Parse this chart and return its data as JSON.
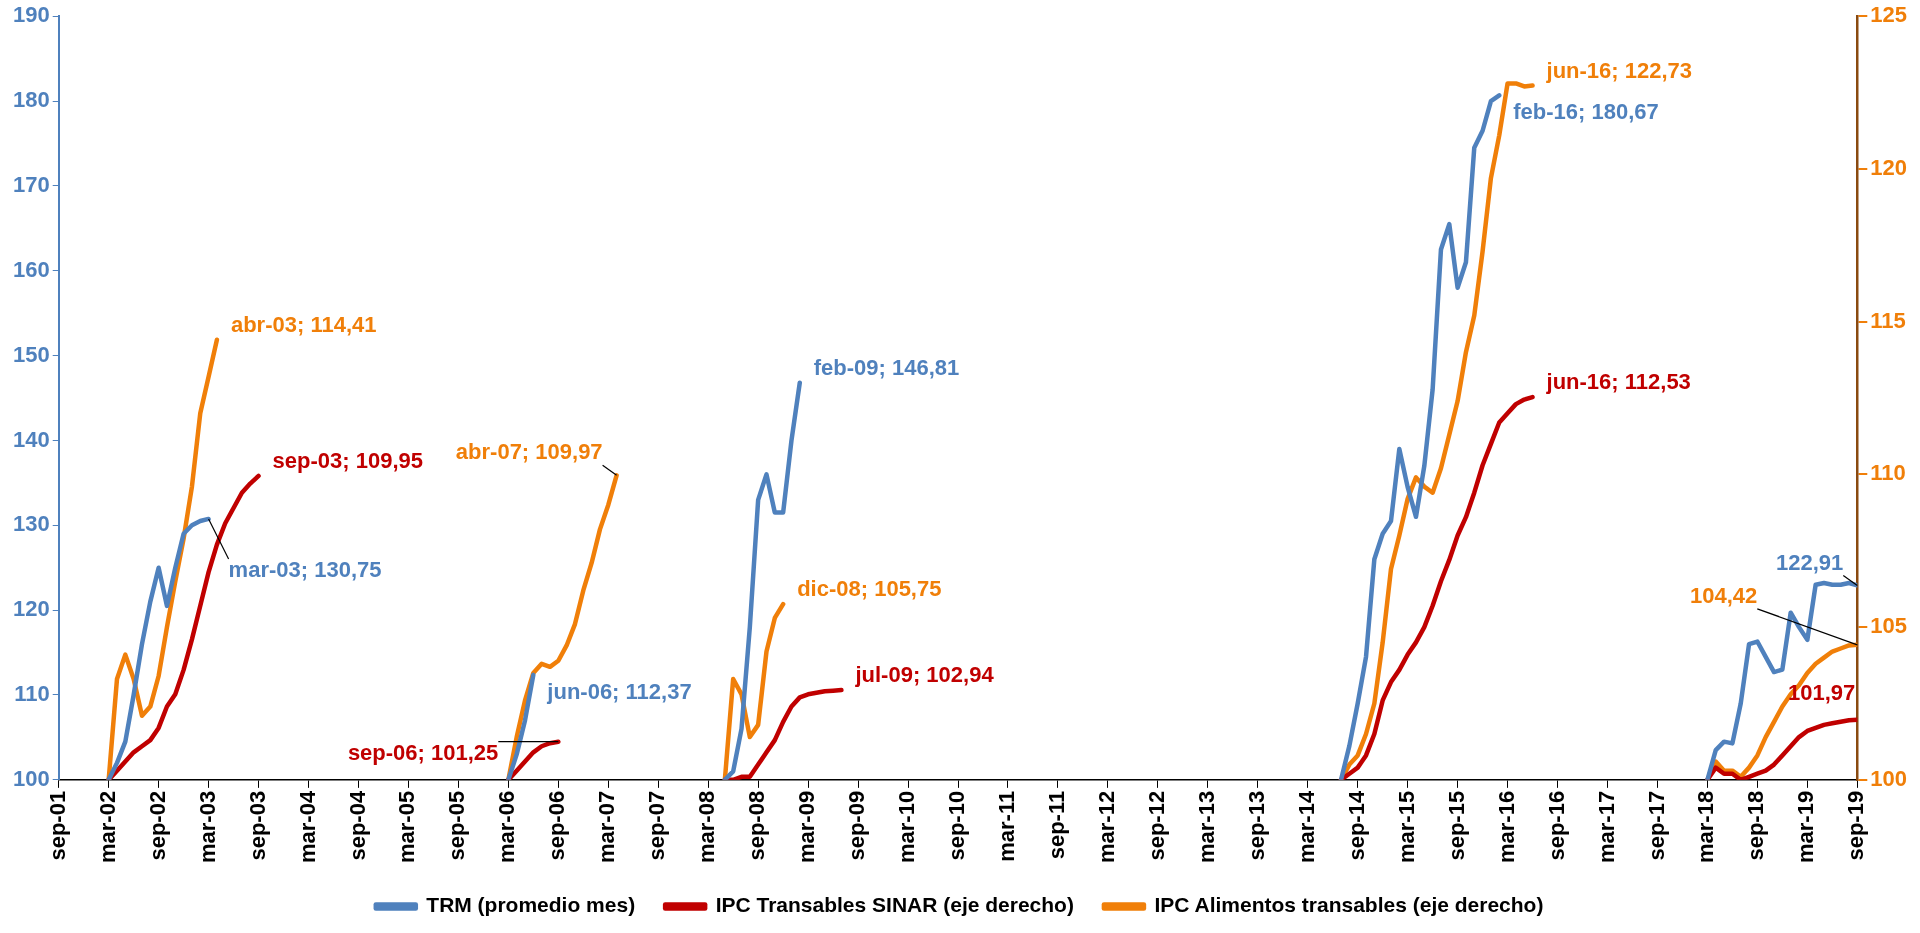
{
  "chart_data": {
    "type": "line",
    "xlim": [
      "2001-09",
      "2019-09"
    ],
    "xticks": [
      {
        "value": "2001-09",
        "label": "sep-01"
      },
      {
        "value": "2002-03",
        "label": "mar-02"
      },
      {
        "value": "2002-09",
        "label": "sep-02"
      },
      {
        "value": "2003-03",
        "label": "mar-03"
      },
      {
        "value": "2003-09",
        "label": "sep-03"
      },
      {
        "value": "2004-03",
        "label": "mar-04"
      },
      {
        "value": "2004-09",
        "label": "sep-04"
      },
      {
        "value": "2005-03",
        "label": "mar-05"
      },
      {
        "value": "2005-09",
        "label": "sep-05"
      },
      {
        "value": "2006-03",
        "label": "mar-06"
      },
      {
        "value": "2006-09",
        "label": "sep-06"
      },
      {
        "value": "2007-03",
        "label": "mar-07"
      },
      {
        "value": "2007-09",
        "label": "sep-07"
      },
      {
        "value": "2008-03",
        "label": "mar-08"
      },
      {
        "value": "2008-09",
        "label": "sep-08"
      },
      {
        "value": "2009-03",
        "label": "mar-09"
      },
      {
        "value": "2009-09",
        "label": "sep-09"
      },
      {
        "value": "2010-03",
        "label": "mar-10"
      },
      {
        "value": "2010-09",
        "label": "sep-10"
      },
      {
        "value": "2011-03",
        "label": "mar-11"
      },
      {
        "value": "2011-09",
        "label": "sep-11"
      },
      {
        "value": "2012-03",
        "label": "mar-12"
      },
      {
        "value": "2012-09",
        "label": "sep-12"
      },
      {
        "value": "2013-03",
        "label": "mar-13"
      },
      {
        "value": "2013-09",
        "label": "sep-13"
      },
      {
        "value": "2014-03",
        "label": "mar-14"
      },
      {
        "value": "2014-09",
        "label": "sep-14"
      },
      {
        "value": "2015-03",
        "label": "mar-15"
      },
      {
        "value": "2015-09",
        "label": "sep-15"
      },
      {
        "value": "2016-03",
        "label": "mar-16"
      },
      {
        "value": "2016-09",
        "label": "sep-16"
      },
      {
        "value": "2017-03",
        "label": "mar-17"
      },
      {
        "value": "2017-09",
        "label": "sep-17"
      },
      {
        "value": "2018-03",
        "label": "mar-18"
      },
      {
        "value": "2018-09",
        "label": "sep-18"
      },
      {
        "value": "2019-03",
        "label": "mar-19"
      },
      {
        "value": "2019-09",
        "label": "sep-19"
      }
    ],
    "ylim": [
      100,
      190
    ],
    "yticks": [
      100,
      110,
      120,
      130,
      140,
      150,
      160,
      170,
      180,
      190
    ],
    "y2lim": [
      100,
      125
    ],
    "y2ticks": [
      100,
      105,
      110,
      115,
      120,
      125
    ],
    "grid": false,
    "legend": "bottom",
    "marker": "none",
    "line_style": "solid",
    "series": [
      {
        "name": "TRM (promedio mes)",
        "color": "#4f81bd",
        "axis": "y",
        "x": [
          "2002-03",
          "2002-04",
          "2002-05",
          "2002-06",
          "2002-07",
          "2002-08",
          "2002-09",
          "2002-10",
          "2002-11",
          "2002-12",
          "2003-01",
          "2003-02",
          "2003-03",
          "2003-04",
          "2006-03",
          "2006-04",
          "2006-05",
          "2006-06",
          "2006-07",
          "2008-05",
          "2008-06",
          "2008-07",
          "2008-08",
          "2008-09",
          "2008-10",
          "2008-11",
          "2008-12",
          "2009-01",
          "2009-02",
          "2009-03",
          "2014-07",
          "2014-08",
          "2014-09",
          "2014-10",
          "2014-11",
          "2014-12",
          "2015-01",
          "2015-02",
          "2015-03",
          "2015-04",
          "2015-05",
          "2015-06",
          "2015-07",
          "2015-08",
          "2015-09",
          "2015-10",
          "2015-11",
          "2015-12",
          "2016-01",
          "2016-02",
          "2016-03",
          "2018-03",
          "2018-04",
          "2018-05",
          "2018-06",
          "2018-07",
          "2018-08",
          "2018-09",
          "2018-10",
          "2018-11",
          "2018-12",
          "2019-01",
          "2019-02",
          "2019-03",
          "2019-04",
          "2019-05",
          "2019-06",
          "2019-07",
          "2019-08",
          "2019-09"
        ],
        "values": [
          100,
          102,
          104.5,
          110,
          116,
          121,
          125,
          120.5,
          125,
          129,
          130,
          130.5,
          130.75,
          null,
          100,
          103,
          107,
          112.37,
          null,
          100,
          101,
          106,
          118,
          133,
          136,
          131.5,
          131.5,
          140,
          146.81,
          null,
          100,
          104,
          109,
          114.5,
          126,
          129,
          130.5,
          139,
          134.5,
          131,
          137,
          146,
          162.5,
          165.5,
          158,
          161,
          174.5,
          176.5,
          180,
          180.67,
          null,
          100,
          103.5,
          104.5,
          104.3,
          109,
          116,
          116.3,
          114.5,
          112.7,
          113,
          119.7,
          118,
          116.5,
          123,
          123.2,
          123,
          123,
          123.2,
          122.91
        ],
        "value_labels": [
          null,
          null,
          null,
          null,
          null,
          null,
          null,
          null,
          null,
          null,
          null,
          null,
          "mar-03; 130,75",
          null,
          null,
          null,
          null,
          "jun-06; 112,37",
          null,
          null,
          null,
          null,
          null,
          null,
          null,
          null,
          null,
          null,
          "feb-09; 146,81",
          null,
          null,
          null,
          null,
          null,
          null,
          null,
          null,
          null,
          null,
          null,
          null,
          null,
          null,
          null,
          null,
          null,
          null,
          null,
          null,
          "feb-16; 180,67",
          null,
          null,
          null,
          null,
          null,
          null,
          null,
          null,
          null,
          null,
          null,
          null,
          null,
          null,
          null,
          null,
          null,
          null,
          null,
          "122,91"
        ]
      },
      {
        "name": "IPC Transables SINAR (eje derecho)",
        "color": "#c00000",
        "axis": "y2",
        "x": [
          "2002-03",
          "2002-04",
          "2002-05",
          "2002-06",
          "2002-07",
          "2002-08",
          "2002-09",
          "2002-10",
          "2002-11",
          "2002-12",
          "2003-01",
          "2003-02",
          "2003-03",
          "2003-04",
          "2003-05",
          "2003-06",
          "2003-07",
          "2003-08",
          "2003-09",
          "2003-10",
          "2006-03",
          "2006-04",
          "2006-05",
          "2006-06",
          "2006-07",
          "2006-08",
          "2006-09",
          "2006-10",
          "2008-05",
          "2008-06",
          "2008-07",
          "2008-08",
          "2008-09",
          "2008-10",
          "2008-11",
          "2008-12",
          "2009-01",
          "2009-02",
          "2009-03",
          "2009-04",
          "2009-05",
          "2009-06",
          "2009-07",
          "2009-08",
          "2014-07",
          "2014-08",
          "2014-09",
          "2014-10",
          "2014-11",
          "2014-12",
          "2015-01",
          "2015-02",
          "2015-03",
          "2015-04",
          "2015-05",
          "2015-06",
          "2015-07",
          "2015-08",
          "2015-09",
          "2015-10",
          "2015-11",
          "2015-12",
          "2016-01",
          "2016-02",
          "2016-03",
          "2016-04",
          "2016-05",
          "2016-06",
          "2016-07",
          "2018-03",
          "2018-04",
          "2018-05",
          "2018-06",
          "2018-07",
          "2018-08",
          "2018-09",
          "2018-10",
          "2018-11",
          "2018-12",
          "2019-01",
          "2019-02",
          "2019-03",
          "2019-04",
          "2019-05",
          "2019-06",
          "2019-07",
          "2019-08",
          "2019-09"
        ],
        "values": [
          100,
          100.3,
          100.6,
          100.9,
          101.1,
          101.3,
          101.7,
          102.4,
          102.8,
          103.6,
          104.6,
          105.7,
          106.8,
          107.7,
          108.4,
          108.9,
          109.4,
          109.7,
          109.95,
          null,
          100,
          100.3,
          100.6,
          100.9,
          101.1,
          101.2,
          101.25,
          null,
          100,
          100,
          100.1,
          100.1,
          100.5,
          100.9,
          101.3,
          101.9,
          102.4,
          102.7,
          102.8,
          102.85,
          102.9,
          102.92,
          102.94,
          null,
          100,
          100.2,
          100.4,
          100.8,
          101.5,
          102.6,
          103.2,
          103.6,
          104.1,
          104.5,
          105,
          105.7,
          106.5,
          107.2,
          108,
          108.6,
          109.4,
          110.3,
          111,
          111.7,
          112,
          112.3,
          112.45,
          112.53,
          null,
          100,
          100.4,
          100.2,
          100.2,
          100,
          100.1,
          100.2,
          100.3,
          100.5,
          100.8,
          101.1,
          101.4,
          101.6,
          101.7,
          101.8,
          101.85,
          101.9,
          101.95,
          101.97
        ],
        "value_labels": [
          null,
          null,
          null,
          null,
          null,
          null,
          null,
          null,
          null,
          null,
          null,
          null,
          null,
          null,
          null,
          null,
          null,
          null,
          "sep-03; 109,95",
          null,
          null,
          null,
          null,
          null,
          null,
          null,
          "sep-06; 101,25",
          null,
          null,
          null,
          null,
          null,
          null,
          null,
          null,
          null,
          null,
          null,
          null,
          null,
          null,
          null,
          "jul-09; 102,94",
          null,
          null,
          null,
          null,
          null,
          null,
          null,
          null,
          null,
          null,
          null,
          null,
          null,
          null,
          null,
          null,
          null,
          null,
          null,
          null,
          null,
          null,
          null,
          null,
          "jun-16; 112,53",
          null,
          null,
          null,
          null,
          null,
          null,
          null,
          null,
          null,
          null,
          null,
          null,
          null,
          null,
          null,
          null,
          null,
          null,
          null,
          "101,97"
        ]
      },
      {
        "name": "IPC Alimentos transables (eje derecho)",
        "color": "#f07f09",
        "axis": "y2",
        "x": [
          "2002-03",
          "2002-04",
          "2002-05",
          "2002-06",
          "2002-07",
          "2002-08",
          "2002-09",
          "2002-10",
          "2002-11",
          "2002-12",
          "2003-01",
          "2003-02",
          "2003-03",
          "2003-04",
          "2003-05",
          "2006-03",
          "2006-04",
          "2006-05",
          "2006-06",
          "2006-07",
          "2006-08",
          "2006-09",
          "2006-10",
          "2006-11",
          "2006-12",
          "2007-01",
          "2007-02",
          "2007-03",
          "2007-04",
          "2007-05",
          "2008-05",
          "2008-06",
          "2008-07",
          "2008-08",
          "2008-09",
          "2008-10",
          "2008-11",
          "2008-12",
          "2009-01",
          "2014-07",
          "2014-08",
          "2014-09",
          "2014-10",
          "2014-11",
          "2014-12",
          "2015-01",
          "2015-02",
          "2015-03",
          "2015-04",
          "2015-05",
          "2015-06",
          "2015-07",
          "2015-08",
          "2015-09",
          "2015-10",
          "2015-11",
          "2015-12",
          "2016-01",
          "2016-02",
          "2016-03",
          "2016-04",
          "2016-05",
          "2016-06",
          "2016-07",
          "2018-03",
          "2018-04",
          "2018-05",
          "2018-06",
          "2018-07",
          "2018-08",
          "2018-09",
          "2018-10",
          "2018-11",
          "2018-12",
          "2019-01",
          "2019-02",
          "2019-03",
          "2019-04",
          "2019-05",
          "2019-06",
          "2019-07",
          "2019-08",
          "2019-09"
        ],
        "values": [
          100,
          103.3,
          104.1,
          103.3,
          102.1,
          102.4,
          103.4,
          105,
          106.5,
          107.9,
          109.6,
          112,
          113.2,
          114.41,
          null,
          100,
          101.4,
          102.6,
          103.5,
          103.8,
          103.7,
          103.9,
          104.4,
          105.1,
          106.2,
          107.1,
          108.2,
          109,
          109.97,
          null,
          100,
          103.3,
          102.8,
          101.4,
          101.8,
          104.2,
          105.3,
          105.75,
          null,
          100,
          100.5,
          100.8,
          101.5,
          102.5,
          104.5,
          106.9,
          108,
          109.2,
          109.9,
          109.6,
          109.4,
          110.2,
          111.3,
          112.4,
          114,
          115.2,
          117.3,
          119.7,
          121.1,
          122.8,
          122.8,
          122.7,
          122.73,
          null,
          100,
          100.6,
          100.3,
          100.3,
          100.1,
          100.4,
          100.8,
          101.4,
          101.9,
          102.4,
          102.8,
          103.1,
          103.5,
          103.8,
          104,
          104.2,
          104.3,
          104.4,
          104.42
        ],
        "value_labels": [
          null,
          null,
          null,
          null,
          null,
          null,
          null,
          null,
          null,
          null,
          null,
          null,
          null,
          "abr-03; 114,41",
          null,
          null,
          null,
          null,
          null,
          null,
          null,
          null,
          null,
          null,
          null,
          null,
          null,
          null,
          "abr-07; 109,97",
          null,
          null,
          null,
          null,
          null,
          null,
          null,
          null,
          "dic-08; 105,75",
          null,
          null,
          null,
          null,
          null,
          null,
          null,
          null,
          null,
          null,
          null,
          null,
          null,
          null,
          null,
          null,
          null,
          null,
          null,
          null,
          null,
          null,
          null,
          null,
          "jun-16; 122,73",
          null,
          null,
          null,
          null,
          null,
          null,
          null,
          null,
          null,
          null,
          null,
          null,
          null,
          null,
          null,
          null,
          null,
          null,
          null,
          "104,42"
        ]
      }
    ]
  }
}
